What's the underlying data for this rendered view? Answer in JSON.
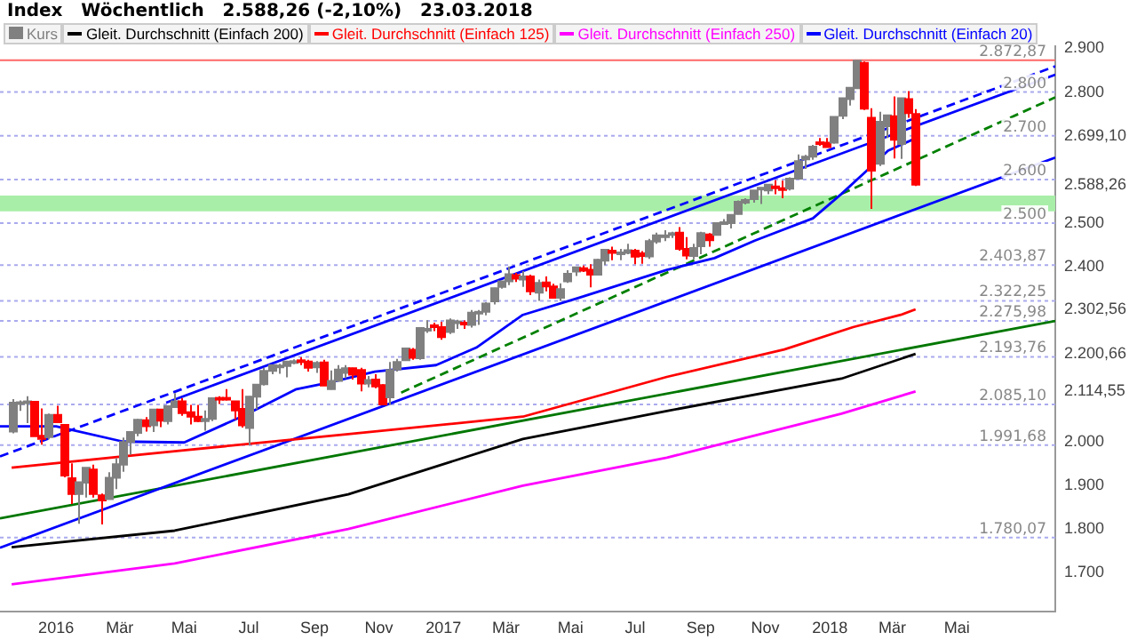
{
  "chart_data": {
    "type": "candlestick",
    "title": "Index   Wöchentlich   2.588,26 (-2,10%)   23.03.2018",
    "legend": "top left",
    "xlim": [
      "2015-11-09",
      "2018-08-02"
    ],
    "xticks": [
      {
        "value": "2016-01-01",
        "label": "2016"
      },
      {
        "value": "2016-03-01",
        "label": "Mär"
      },
      {
        "value": "2016-05-01",
        "label": "Mai"
      },
      {
        "value": "2016-07-01",
        "label": "Jul"
      },
      {
        "value": "2016-09-01",
        "label": "Sep"
      },
      {
        "value": "2016-11-01",
        "label": "Nov"
      },
      {
        "value": "2017-01-01",
        "label": "2017"
      },
      {
        "value": "2017-03-01",
        "label": "Mär"
      },
      {
        "value": "2017-05-01",
        "label": "Mai"
      },
      {
        "value": "2017-07-01",
        "label": "Jul"
      },
      {
        "value": "2017-09-01",
        "label": "Sep"
      },
      {
        "value": "2017-11-01",
        "label": "Nov"
      },
      {
        "value": "2018-01-01",
        "label": "2018"
      },
      {
        "value": "2018-03-01",
        "label": "Mär"
      },
      {
        "value": "2018-05-01",
        "label": "Mai"
      }
    ],
    "ylim": [
      1610,
      2905
    ],
    "yticks": [
      {
        "value": 1700,
        "label": "1.700"
      },
      {
        "value": 1800,
        "label": "1.800"
      },
      {
        "value": 1900,
        "label": "1.900"
      },
      {
        "value": 2000,
        "label": "2.000"
      },
      {
        "value": 2114.55,
        "label": "2.114,55"
      },
      {
        "value": 2200.66,
        "label": "2.200,66"
      },
      {
        "value": 2302.56,
        "label": "2.302,56"
      },
      {
        "value": 2400,
        "label": "2.400"
      },
      {
        "value": 2500,
        "label": "2.500"
      },
      {
        "value": 2588.26,
        "label": "2.588,26"
      },
      {
        "value": 2699.1,
        "label": "2.699,10"
      },
      {
        "value": 2800,
        "label": "2.800"
      },
      {
        "value": 2900,
        "label": "2.900"
      }
    ],
    "series": [
      {
        "name": "Kurs",
        "type": "candlestick",
        "colors": [
          "#808080",
          "#808080",
          "#808080",
          "#ff0000",
          "#ff0000",
          "#808080",
          "#ff0000",
          "#ff0000",
          "#ff0000",
          "#808080",
          "#808080",
          "#ff0000",
          "#ff0000",
          "#808080",
          "#808080",
          "#808080",
          "#808080",
          "#808080",
          "#ff0000",
          "#808080",
          "#ff0000",
          "#808080",
          "#808080",
          "#ff0000",
          "#ff0000",
          "#ff0000",
          "#808080",
          "#808080",
          "#ff0000",
          "#ff0000",
          "#ff0000",
          "#ff0000",
          "#808080",
          "#808080",
          "#808080",
          "#808080",
          "#808080",
          "#808080",
          "#808080",
          "#ff0000",
          "#ff0000",
          "#808080",
          "#ff0000",
          "#808080",
          "#808080",
          "#808080",
          "#ff0000",
          "#ff0000",
          "#808080",
          "#ff0000",
          "#ff0000",
          "#808080",
          "#808080",
          "#808080",
          "#ff0000",
          "#808080",
          "#808080",
          "#ff0000",
          "#ff0000",
          "#808080",
          "#808080",
          "#ff0000",
          "#808080",
          "#808080",
          "#808080",
          "#808080",
          "#808080",
          "#808080",
          "#ff0000",
          "#808080",
          "#ff0000",
          "#808080",
          "#ff0000",
          "#ff0000",
          "#808080",
          "#808080",
          "#808080",
          "#ff0000",
          "#ff0000",
          "#808080",
          "#808080",
          "#ff0000",
          "#808080",
          "#808080",
          "#ff0000",
          "#ff0000",
          "#808080",
          "#808080",
          "#808080",
          "#808080",
          "#ff0000",
          "#ff0000",
          "#808080",
          "#808080",
          "#ff0000",
          "#808080",
          "#808080",
          "#808080",
          "#808080",
          "#808080",
          "#808080",
          "#808080",
          "#808080",
          "#ff0000",
          "#ff0000",
          "#808080",
          "#808080",
          "#808080",
          "#808080",
          "#ff0000",
          "#ff0000",
          "#808080",
          "#808080",
          "#808080",
          "#808080",
          "#ff0000",
          "#ff0000",
          "#808080",
          "#808080",
          "#ff0000",
          "#808080",
          "#ff0000",
          "#ff0000"
        ],
        "x": [
          "2015-11-20",
          "2015-11-27",
          "2015-12-04",
          "2015-12-11",
          "2015-12-18",
          "2015-12-25",
          "2016-01-01",
          "2016-01-08",
          "2016-01-15",
          "2016-01-22",
          "2016-01-29",
          "2016-02-05",
          "2016-02-12",
          "2016-02-19",
          "2016-02-26",
          "2016-03-04",
          "2016-03-11",
          "2016-03-18",
          "2016-03-25",
          "2016-04-01",
          "2016-04-08",
          "2016-04-15",
          "2016-04-22",
          "2016-04-29",
          "2016-05-06",
          "2016-05-13",
          "2016-05-20",
          "2016-05-27",
          "2016-06-03",
          "2016-06-10",
          "2016-06-17",
          "2016-06-24",
          "2016-07-01",
          "2016-07-08",
          "2016-07-15",
          "2016-07-22",
          "2016-07-29",
          "2016-08-05",
          "2016-08-12",
          "2016-08-19",
          "2016-08-26",
          "2016-09-02",
          "2016-09-09",
          "2016-09-16",
          "2016-09-23",
          "2016-09-30",
          "2016-10-07",
          "2016-10-14",
          "2016-10-21",
          "2016-10-28",
          "2016-11-04",
          "2016-11-11",
          "2016-11-18",
          "2016-11-25",
          "2016-12-02",
          "2016-12-09",
          "2016-12-16",
          "2016-12-23",
          "2016-12-30",
          "2017-01-06",
          "2017-01-13",
          "2017-01-20",
          "2017-01-27",
          "2017-02-03",
          "2017-02-10",
          "2017-02-17",
          "2017-02-24",
          "2017-03-03",
          "2017-03-10",
          "2017-03-17",
          "2017-03-24",
          "2017-03-31",
          "2017-04-07",
          "2017-04-14",
          "2017-04-21",
          "2017-04-28",
          "2017-05-05",
          "2017-05-12",
          "2017-05-19",
          "2017-05-26",
          "2017-06-02",
          "2017-06-09",
          "2017-06-16",
          "2017-06-23",
          "2017-06-30",
          "2017-07-07",
          "2017-07-14",
          "2017-07-21",
          "2017-07-28",
          "2017-08-04",
          "2017-08-11",
          "2017-08-18",
          "2017-08-25",
          "2017-09-01",
          "2017-09-08",
          "2017-09-15",
          "2017-09-22",
          "2017-09-29",
          "2017-10-06",
          "2017-10-13",
          "2017-10-20",
          "2017-10-27",
          "2017-11-03",
          "2017-11-10",
          "2017-11-17",
          "2017-11-24",
          "2017-12-01",
          "2017-12-08",
          "2017-12-15",
          "2017-12-22",
          "2017-12-29",
          "2018-01-05",
          "2018-01-12",
          "2018-01-19",
          "2018-01-26",
          "2018-02-02",
          "2018-02-09",
          "2018-02-16",
          "2018-02-23",
          "2018-03-02",
          "2018-03-09",
          "2018-03-16",
          "2018-03-23"
        ],
        "ohlc": [
          [
            2023,
            2097,
            2019,
            2089
          ],
          [
            2090,
            2094,
            2070,
            2090
          ],
          [
            2090,
            2104,
            2042,
            2092
          ],
          [
            2091,
            2093,
            2012,
            2012
          ],
          [
            2013,
            2076,
            1993,
            2006
          ],
          [
            2010,
            2064,
            2005,
            2061
          ],
          [
            2061,
            2082,
            2043,
            2044
          ],
          [
            2038,
            2038,
            1918,
            1922
          ],
          [
            1916,
            1950,
            1857,
            1880
          ],
          [
            1880,
            1908,
            1812,
            1907
          ],
          [
            1906,
            1940,
            1872,
            1940
          ],
          [
            1936,
            1947,
            1872,
            1880
          ],
          [
            1877,
            1881,
            1810.1,
            1865
          ],
          [
            1868,
            1930,
            1868,
            1917
          ],
          [
            1917,
            1962,
            1891,
            1948
          ],
          [
            1947,
            2009,
            1931,
            1999
          ],
          [
            1999,
            2022,
            1970,
            2022
          ],
          [
            2020,
            2052,
            2012,
            2050
          ],
          [
            2049,
            2056,
            2023,
            2035
          ],
          [
            2037,
            2075,
            2022,
            2073
          ],
          [
            2073,
            2074,
            2033,
            2048
          ],
          [
            2047,
            2083,
            2039,
            2081
          ],
          [
            2079,
            2111,
            2078,
            2092
          ],
          [
            2092,
            2099,
            2059,
            2065
          ],
          [
            2067,
            2084,
            2039,
            2057
          ],
          [
            2057,
            2084,
            2044,
            2047
          ],
          [
            2047,
            2071,
            2025,
            2052
          ],
          [
            2052,
            2100,
            2047,
            2099
          ],
          [
            2100,
            2104,
            2086,
            2099
          ],
          [
            2100,
            2120,
            2094,
            2096
          ],
          [
            2092,
            2093,
            2050,
            2071
          ],
          [
            2075,
            2120,
            2032,
            2037
          ],
          [
            2031,
            2104,
            1992,
            2103
          ],
          [
            2103,
            2131,
            2074,
            2130
          ],
          [
            2131,
            2169,
            2128,
            2162
          ],
          [
            2162,
            2176,
            2154,
            2175
          ],
          [
            2174,
            2178,
            2155,
            2174
          ],
          [
            2173,
            2183,
            2147,
            2183
          ],
          [
            2183,
            2188,
            2177,
            2184
          ],
          [
            2186,
            2193,
            2175,
            2184
          ],
          [
            2183,
            2187,
            2160,
            2169
          ],
          [
            2170,
            2184,
            2157,
            2180
          ],
          [
            2181,
            2187,
            2128,
            2128
          ],
          [
            2120,
            2163,
            2119,
            2139
          ],
          [
            2139,
            2175,
            2139,
            2165
          ],
          [
            2157,
            2175,
            2145,
            2168
          ],
          [
            2168,
            2169,
            2142,
            2153
          ],
          [
            2164,
            2169,
            2115,
            2133
          ],
          [
            2133,
            2150,
            2124,
            2141
          ],
          [
            2142,
            2154,
            2122,
            2126
          ],
          [
            2129,
            2131,
            2083,
            2085
          ],
          [
            2101,
            2182,
            2084,
            2164
          ],
          [
            2165,
            2189,
            2160,
            2182
          ],
          [
            2186,
            2214,
            2186,
            2213
          ],
          [
            2210,
            2214,
            2187,
            2192
          ],
          [
            2191,
            2261,
            2187,
            2260
          ],
          [
            2258,
            2278,
            2249,
            2258
          ],
          [
            2266,
            2272,
            2253,
            2264
          ],
          [
            2262,
            2274,
            2233,
            2239
          ],
          [
            2251,
            2282,
            2246,
            2277
          ],
          [
            2274,
            2279,
            2258,
            2275
          ],
          [
            2272,
            2277,
            2258,
            2271
          ],
          [
            2267,
            2301,
            2261,
            2295
          ],
          [
            2295,
            2301,
            2267,
            2297
          ],
          [
            2297,
            2319,
            2289,
            2316
          ],
          [
            2321,
            2352,
            2314,
            2351
          ],
          [
            2354,
            2368,
            2350,
            2367
          ],
          [
            2367,
            2401,
            2358,
            2383
          ],
          [
            2381,
            2386,
            2365,
            2373
          ],
          [
            2371,
            2390,
            2354,
            2378
          ],
          [
            2378,
            2382,
            2335,
            2344
          ],
          [
            2341,
            2371,
            2322,
            2363
          ],
          [
            2364,
            2378,
            2344,
            2355
          ],
          [
            2355,
            2361,
            2328,
            2329
          ],
          [
            2329,
            2362,
            2322,
            2349
          ],
          [
            2367,
            2392,
            2363,
            2384
          ],
          [
            2389,
            2400,
            2379,
            2399
          ],
          [
            2397,
            2403,
            2388,
            2391
          ],
          [
            2393,
            2406,
            2353,
            2382
          ],
          [
            2382,
            2418,
            2380,
            2416
          ],
          [
            2414,
            2440,
            2404,
            2439
          ],
          [
            2437,
            2446,
            2415,
            2432
          ],
          [
            2432,
            2441,
            2415,
            2433
          ],
          [
            2432,
            2453,
            2429,
            2438
          ],
          [
            2437,
            2441,
            2406,
            2423
          ],
          [
            2431,
            2436,
            2407,
            2425
          ],
          [
            2424,
            2464,
            2418,
            2459
          ],
          [
            2458,
            2478,
            2453,
            2472
          ],
          [
            2472,
            2484,
            2459,
            2472
          ],
          [
            2475,
            2480,
            2466,
            2477
          ],
          [
            2478,
            2491,
            2437,
            2441
          ],
          [
            2441,
            2468,
            2417,
            2426
          ],
          [
            2425,
            2453,
            2417,
            2443
          ],
          [
            2447,
            2480,
            2429,
            2477
          ],
          [
            2474,
            2477,
            2446,
            2461
          ],
          [
            2473,
            2500,
            2473,
            2500
          ],
          [
            2502,
            2509,
            2496,
            2502
          ],
          [
            2500,
            2519,
            2488,
            2519
          ],
          [
            2521,
            2552,
            2520,
            2549
          ],
          [
            2547,
            2557,
            2543,
            2553
          ],
          [
            2555,
            2575,
            2547,
            2575
          ],
          [
            2578,
            2582,
            2544,
            2581
          ],
          [
            2575,
            2589,
            2566,
            2588
          ],
          [
            2584,
            2598,
            2566,
            2582
          ],
          [
            2580,
            2597,
            2557,
            2579
          ],
          [
            2579,
            2605,
            2575,
            2602
          ],
          [
            2602,
            2657,
            2601,
            2642
          ],
          [
            2646,
            2656,
            2624,
            2652
          ],
          [
            2652,
            2679,
            2645,
            2675
          ],
          [
            2685,
            2695,
            2677,
            2683
          ],
          [
            2684,
            2695,
            2673,
            2674
          ],
          [
            2684,
            2743,
            2682,
            2743
          ],
          [
            2746,
            2787,
            2738,
            2786
          ],
          [
            2784,
            2810,
            2769,
            2810
          ],
          [
            2809,
            2872.87,
            2808,
            2872
          ],
          [
            2867,
            2870,
            2759,
            2762
          ],
          [
            2741,
            2763,
            2532.7,
            2620
          ],
          [
            2636,
            2755,
            2631,
            2732
          ],
          [
            2722,
            2747,
            2695,
            2747
          ],
          [
            2745,
            2790,
            2648,
            2691
          ],
          [
            2681,
            2787,
            2647,
            2786
          ],
          [
            2784,
            2802,
            2741,
            2752
          ],
          [
            2750,
            2761,
            2585,
            2588.26
          ]
        ]
      },
      {
        "name": "Gleit. Durchschnitt (Einfach 200)",
        "type": "line",
        "color": "#000000",
        "x": [
          "2015-11-20",
          "2016-04-22",
          "2016-10-03",
          "2017-03-17",
          "2017-07-31",
          "2018-01-12",
          "2018-03-23"
        ],
        "values": [
          1758,
          1796,
          1879,
          2006,
          2070,
          2144,
          2200.66
        ]
      },
      {
        "name": "Gleit. Durchschnitt (Einfach 125)",
        "type": "line",
        "color": "#ff0000",
        "x": [
          "2015-11-20",
          "2016-04-22",
          "2016-10-03",
          "2017-03-17",
          "2017-07-31",
          "2017-11-19",
          "2018-01-23",
          "2018-03-09",
          "2018-03-23"
        ],
        "values": [
          1940,
          1978,
          2017,
          2057,
          2148,
          2211,
          2262,
          2290,
          2302.56
        ]
      },
      {
        "name": "Gleit. Durchschnitt (Einfach 250)",
        "type": "line",
        "color": "#ff00ff",
        "x": [
          "2015-11-20",
          "2016-04-22",
          "2016-10-03",
          "2017-03-17",
          "2017-07-31",
          "2018-01-12",
          "2018-03-23"
        ],
        "values": [
          1673,
          1721,
          1800,
          1899,
          1963,
          2064,
          2114.55
        ]
      },
      {
        "name": "Gleit. Durchschnitt (Einfach 20)",
        "type": "line",
        "color": "#0000ff",
        "x": [
          "2015-11-09",
          "2016-01-01",
          "2016-03-04",
          "2016-05-01",
          "2016-06-27",
          "2016-08-15",
          "2016-09-17",
          "2016-10-28",
          "2016-12-25",
          "2017-02-01",
          "2017-03-17",
          "2017-05-10",
          "2017-07-31",
          "2017-09-14",
          "2017-10-22",
          "2017-12-16",
          "2018-01-12",
          "2018-02-04",
          "2018-02-25",
          "2018-03-19",
          "2018-03-23"
        ],
        "values": [
          2035,
          2035,
          2000,
          1998,
          2060,
          2120,
          2136,
          2160,
          2175,
          2215,
          2290,
          2330,
          2393,
          2420,
          2460,
          2511,
          2567,
          2618,
          2666,
          2690,
          2699.1
        ]
      },
      {
        "type": "line",
        "color": "#0000ff",
        "line_style": "dashed",
        "x": [
          "2015-11-09",
          "2018-08-02"
        ],
        "values": [
          1966,
          2859
        ]
      },
      {
        "type": "line",
        "color": "#0000ff",
        "x": [
          "2016-04-14",
          "2018-08-02"
        ],
        "values": [
          2089,
          2840
        ]
      },
      {
        "type": "line",
        "color": "#0000ff",
        "x": [
          "2015-11-09",
          "2018-08-02"
        ],
        "values": [
          1757,
          2650
        ]
      },
      {
        "type": "line",
        "color": "#008000",
        "line_style": "dashed",
        "x": [
          "2016-11-22",
          "2018-08-02"
        ],
        "values": [
          2112,
          2788
        ]
      },
      {
        "type": "line",
        "color": "#007700",
        "x": [
          "2015-11-09",
          "2018-08-02"
        ],
        "values": [
          1824,
          2276
        ]
      }
    ],
    "ref_lines": [
      {
        "axis": "y",
        "value": 2872.87,
        "label": "2.872,87",
        "color": "#ff6666",
        "line_style": "solid"
      },
      {
        "axis": "y",
        "value": 2800,
        "label": "2.800",
        "color": "#aaaaee",
        "line_style": "dotted"
      },
      {
        "axis": "y",
        "value": 2700,
        "label": "2.700",
        "color": "#aaaaee",
        "line_style": "dotted"
      },
      {
        "axis": "y",
        "value": 2600,
        "label": "2.600",
        "color": "#aaaaee",
        "line_style": "dotted"
      },
      {
        "axis": "y",
        "value": 2500,
        "label": "2.500",
        "color": "#aaaaee",
        "line_style": "dotted"
      },
      {
        "axis": "y",
        "value": 2403.87,
        "label": "2.403,87",
        "color": "#aaaaee",
        "line_style": "dotted"
      },
      {
        "axis": "y",
        "value": 2322.25,
        "label": "2.322,25",
        "color": "#aaaaee",
        "line_style": "dotted"
      },
      {
        "axis": "y",
        "value": 2275.98,
        "label": "2.275,98",
        "color": "#aaaaee",
        "line_style": "dotted"
      },
      {
        "axis": "y",
        "value": 2193.76,
        "label": "2.193,76",
        "color": "#aaaaee",
        "line_style": "dotted"
      },
      {
        "axis": "y",
        "value": 2085.1,
        "label": "2.085,10",
        "color": "#aaaaee",
        "line_style": "dotted"
      },
      {
        "axis": "y",
        "value": 1991.68,
        "label": "1.991,68",
        "color": "#aaaaee",
        "line_style": "dotted"
      },
      {
        "axis": "y",
        "value": 1780.07,
        "label": "1.780,07",
        "color": "#aaaaee",
        "line_style": "dotted"
      }
    ],
    "bands": [
      {
        "axis": "y",
        "from": 2527,
        "to": 2563,
        "color": "#a8eea8"
      }
    ]
  }
}
